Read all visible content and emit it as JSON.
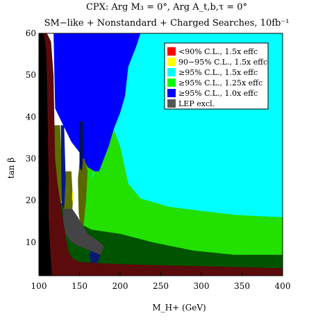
{
  "chart_data": {
    "type": "heatmap",
    "title_line1": "CPX: Arg M₃ = 0°, Arg A_t,b,τ = 0°",
    "title_line2": "SM−like + Nonstandard + Charged Searches, 10fb⁻¹",
    "xlabel": "M_H+ (GeV)",
    "ylabel": "tan β",
    "xlim": [
      100,
      400
    ],
    "ylim": [
      2,
      60
    ],
    "x_ticks": [
      "100",
      "150",
      "200",
      "250",
      "300",
      "350",
      "400"
    ],
    "y_ticks": [
      "10",
      "20",
      "30",
      "40",
      "50",
      "60"
    ],
    "x_tick_values": [
      100,
      150,
      200,
      250,
      300,
      350,
      400
    ],
    "y_tick_values": [
      10,
      20,
      30,
      40,
      50,
      60
    ],
    "legend": {
      "placement": "top-right",
      "entries": [
        {
          "label": "<90% C.L., 1.5x effc",
          "color": "#ff0000"
        },
        {
          "label": "90−95% C.L., 1.5x effc",
          "color": "#ffff00"
        },
        {
          "label": "≥95% C.L., 1.5x effc",
          "color": "#00ffff"
        },
        {
          "label": "≥95% C.L., 1.25x effc",
          "color": "#00ff00"
        },
        {
          "label": "≥95% C.L., 1.0x effc",
          "color": "#0000ff"
        },
        {
          "label": "LEP excl.",
          "color": "#555555"
        }
      ]
    },
    "regions": [
      {
        "name": "green",
        "color": "#22e000",
        "polygon": [
          [
            152,
            60
          ],
          [
            400,
            60
          ],
          [
            400,
            2
          ],
          [
            152,
            2
          ]
        ]
      },
      {
        "name": "yellow",
        "color": "#ffff00",
        "polygon": [
          [
            352,
            60
          ],
          [
            400,
            60
          ],
          [
            400,
            54
          ],
          [
            380,
            52
          ]
        ]
      },
      {
        "name": "cyan",
        "color": "#00ffff",
        "polygon": [
          [
            196,
            60
          ],
          [
            400,
            60
          ],
          [
            400,
            16
          ],
          [
            345,
            16.5
          ],
          [
            300,
            17.5
          ],
          [
            260,
            18.5
          ],
          [
            225,
            20.5
          ],
          [
            210,
            24
          ],
          [
            200,
            33
          ],
          [
            192,
            37
          ],
          [
            185,
            39
          ],
          [
            172,
            29
          ],
          [
            165,
            25
          ]
        ]
      },
      {
        "name": "blue",
        "color": "#0000ff",
        "polygon": [
          [
            125,
            60
          ],
          [
            225,
            60
          ],
          [
            220,
            57
          ],
          [
            214,
            54
          ],
          [
            210,
            52
          ],
          [
            206,
            45
          ],
          [
            200,
            41
          ],
          [
            196,
            39
          ],
          [
            192,
            37
          ],
          [
            186,
            33
          ],
          [
            180,
            30
          ],
          [
            174,
            27
          ],
          [
            168,
            27
          ],
          [
            160,
            28
          ],
          [
            152,
            31
          ],
          [
            140,
            34
          ],
          [
            130,
            38
          ],
          [
            120,
            42
          ],
          [
            118,
            60
          ]
        ]
      },
      {
        "name": "dark-green-band",
        "color": "#005400",
        "polygon": [
          [
            103,
            24
          ],
          [
            120,
            23
          ],
          [
            135,
            16
          ],
          [
            165,
            13
          ],
          [
            200,
            12
          ],
          [
            240,
            10
          ],
          [
            290,
            8
          ],
          [
            340,
            7
          ],
          [
            400,
            7
          ],
          [
            400,
            3
          ],
          [
            320,
            3
          ],
          [
            250,
            3
          ],
          [
            200,
            3.5
          ],
          [
            160,
            4
          ],
          [
            140,
            5
          ],
          [
            125,
            7
          ],
          [
            110,
            9
          ],
          [
            103,
            11
          ]
        ]
      },
      {
        "name": "olive-strip-left",
        "color": "#5c6e00",
        "polygon": [
          [
            118,
            38
          ],
          [
            126,
            38
          ],
          [
            128,
            29
          ],
          [
            128,
            20
          ],
          [
            122,
            17
          ],
          [
            118,
            18
          ]
        ]
      },
      {
        "name": "olive-strip-mid",
        "color": "#616e00",
        "polygon": [
          [
            133,
            27
          ],
          [
            140,
            27
          ],
          [
            142,
            20
          ],
          [
            140,
            15
          ],
          [
            134,
            13
          ],
          [
            130,
            16
          ],
          [
            131,
            24
          ]
        ]
      },
      {
        "name": "olive-strip-right",
        "color": "#5a6600",
        "polygon": [
          [
            150,
            29
          ],
          [
            156,
            30
          ],
          [
            160,
            27
          ],
          [
            158,
            20
          ],
          [
            155,
            14
          ],
          [
            152,
            13
          ],
          [
            149,
            17
          ],
          [
            148,
            25
          ]
        ]
      },
      {
        "name": "navy-spike-1",
        "color": "#001a8c",
        "polygon": [
          [
            127,
            38
          ],
          [
            131,
            38
          ],
          [
            133,
            25
          ],
          [
            131,
            18
          ],
          [
            128,
            19
          ]
        ]
      },
      {
        "name": "navy-spike-2",
        "color": "#001060",
        "polygon": [
          [
            150,
            39
          ],
          [
            154,
            39
          ],
          [
            155,
            32
          ],
          [
            153,
            27
          ],
          [
            150,
            28
          ]
        ]
      },
      {
        "name": "navy-blob",
        "color": "#0a1a70",
        "polygon": [
          [
            165,
            8.5
          ],
          [
            172,
            8.5
          ],
          [
            176,
            7
          ],
          [
            172,
            5
          ],
          [
            164,
            5
          ],
          [
            162,
            7
          ]
        ]
      },
      {
        "name": "maroon",
        "color": "#5b0b0b",
        "polygon": [
          [
            100,
            2
          ],
          [
            100,
            60
          ],
          [
            110,
            60
          ],
          [
            115,
            58
          ],
          [
            118,
            50
          ],
          [
            119,
            40
          ],
          [
            120,
            30
          ],
          [
            123,
            24
          ],
          [
            127,
            19
          ],
          [
            131,
            14
          ],
          [
            134,
            10
          ],
          [
            137,
            7.5
          ],
          [
            142,
            6
          ],
          [
            150,
            5.3
          ],
          [
            170,
            5
          ],
          [
            230,
            4.6
          ],
          [
            300,
            4.3
          ],
          [
            400,
            3.8
          ],
          [
            400,
            2
          ]
        ]
      },
      {
        "name": "black",
        "color": "#000000",
        "polygon": [
          [
            100,
            2
          ],
          [
            100,
            60
          ],
          [
            106,
            60
          ],
          [
            109,
            56
          ],
          [
            110,
            48
          ],
          [
            111,
            36
          ],
          [
            112,
            25
          ],
          [
            112,
            16
          ],
          [
            114,
            8
          ],
          [
            116,
            2
          ]
        ]
      },
      {
        "name": "lep-gray",
        "color": "#444444",
        "polygon": [
          [
            130,
            18
          ],
          [
            141,
            18
          ],
          [
            148,
            16
          ],
          [
            160,
            12
          ],
          [
            175,
            10
          ],
          [
            180,
            9
          ],
          [
            176,
            7
          ],
          [
            163,
            8
          ],
          [
            150,
            9
          ],
          [
            140,
            10
          ],
          [
            133,
            12
          ],
          [
            130,
            15
          ]
        ]
      },
      {
        "name": "yellow-speck",
        "color": "#ffff00",
        "polygon": [
          [
            141,
            22
          ],
          [
            142,
            22
          ],
          [
            142.5,
            20
          ],
          [
            141.5,
            19.5
          ],
          [
            140.8,
            20.5
          ]
        ]
      }
    ]
  }
}
